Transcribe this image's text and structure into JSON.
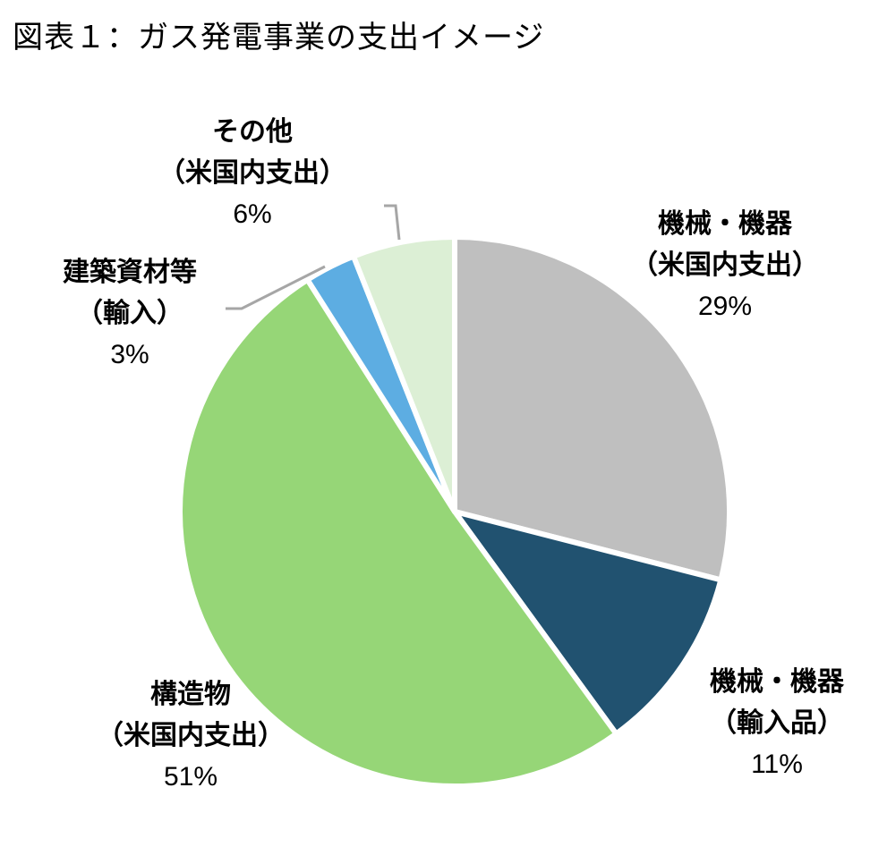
{
  "title": "図表１：ガス発電事業の支出イメージ",
  "chart_data": {
    "type": "pie",
    "title": "図表１：ガス発電事業の支出イメージ",
    "start_angle_deg": 0,
    "direction": "clockwise",
    "slices": [
      {
        "name": "機械・機器（米国内支出）",
        "line1": "機械・機器",
        "line2": "（米国内支出）",
        "value": 29,
        "pct_label": "29%",
        "color": "#BFBFBF"
      },
      {
        "name": "機械・機器（輸入品）",
        "line1": "機械・機器",
        "line2": "（輸入品）",
        "value": 11,
        "pct_label": "11%",
        "color": "#215270"
      },
      {
        "name": "構造物（米国内支出）",
        "line1": "構造物",
        "line2": "（米国内支出）",
        "value": 51,
        "pct_label": "51%",
        "color": "#96D677"
      },
      {
        "name": "建築資材等（輸入）",
        "line1": "建築資材等",
        "line2": "（輸入）",
        "value": 3,
        "pct_label": "3%",
        "color": "#5DADE2"
      },
      {
        "name": "その他（米国内支出）",
        "line1": "その他",
        "line2": "（米国内支出）",
        "value": 6,
        "pct_label": "6%",
        "color": "#DCEFD5"
      }
    ],
    "legend": "none (data labels)",
    "leader_line_color": "#A6A6A6"
  }
}
